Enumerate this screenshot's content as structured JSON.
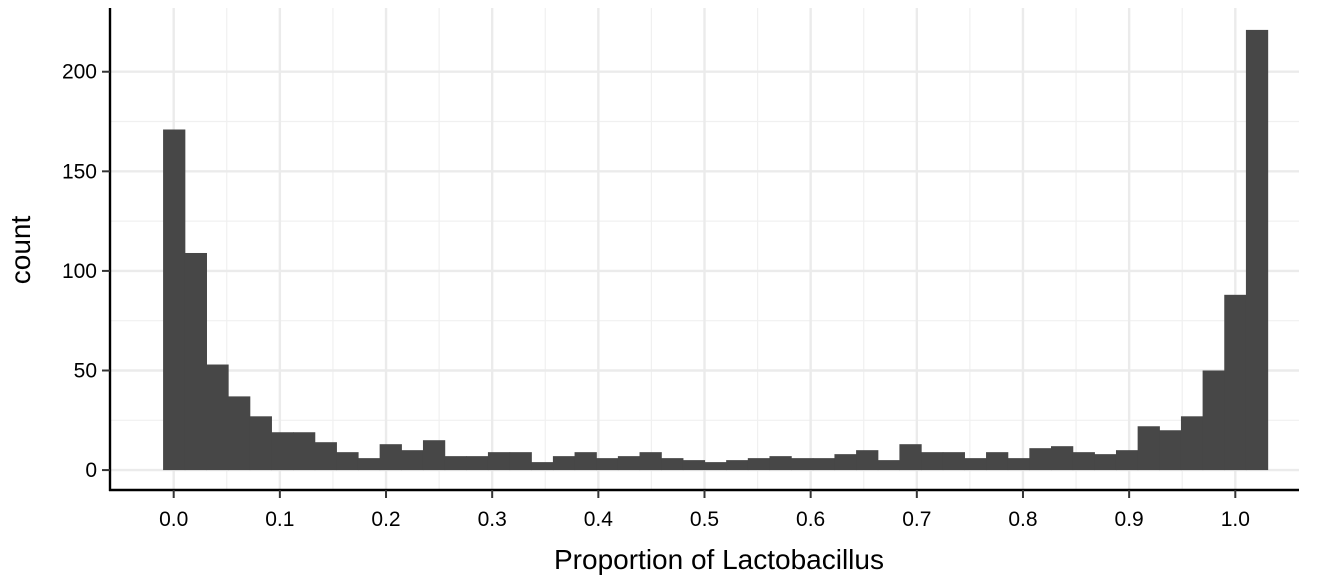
{
  "chart_data": {
    "type": "bar",
    "title": "",
    "xlabel": "Proportion of Lactobacillus",
    "ylabel": "count",
    "xlim": [
      -0.06,
      1.06
    ],
    "ylim": [
      -10,
      232
    ],
    "xticks": [
      0.0,
      0.1,
      0.2,
      0.3,
      0.4,
      0.5,
      0.6,
      0.7,
      0.8,
      0.9,
      1.0
    ],
    "xtick_labels": [
      "0.0",
      "0.1",
      "0.2",
      "0.3",
      "0.4",
      "0.5",
      "0.6",
      "0.7",
      "0.8",
      "0.9",
      "1.0"
    ],
    "yticks": [
      0,
      50,
      100,
      150,
      200
    ],
    "ytick_labels": [
      "0",
      "50",
      "100",
      "150",
      "200"
    ],
    "grid": true,
    "bar_color": "#474747",
    "bins": {
      "start": -0.01,
      "width": 0.0204,
      "counts": [
        171,
        109,
        53,
        37,
        27,
        19,
        19,
        14,
        9,
        6,
        13,
        10,
        15,
        7,
        7,
        9,
        9,
        4,
        7,
        9,
        6,
        7,
        9,
        6,
        5,
        4,
        5,
        6,
        7,
        6,
        6,
        8,
        10,
        5,
        13,
        9,
        9,
        6,
        9,
        6,
        11,
        12,
        9,
        8,
        10,
        22,
        20,
        27,
        50,
        88,
        221
      ]
    }
  }
}
